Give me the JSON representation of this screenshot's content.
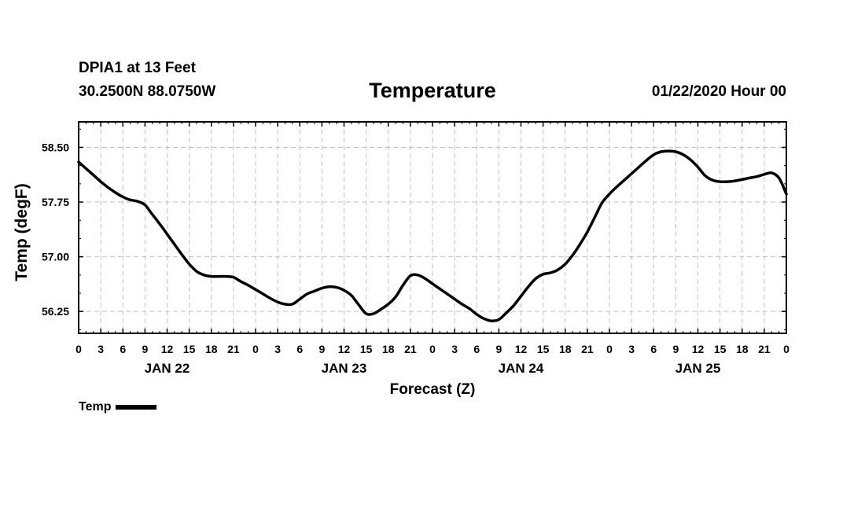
{
  "header": {
    "station": "DPIA1 at 13 Feet",
    "coords": "30.2500N 88.0750W",
    "title": "Temperature",
    "run_time": "01/22/2020 Hour 00"
  },
  "legend": {
    "label": "Temp",
    "color": "#000000"
  },
  "chart_data": {
    "type": "line",
    "title": "Temperature",
    "xlabel": "Forecast (Z)",
    "ylabel": "Temp (degF)",
    "x_unit": "forecast hour from 01/22/2020 00Z",
    "xlim": [
      0,
      96
    ],
    "ylim": [
      55.95,
      58.85
    ],
    "yticks": [
      56.25,
      57.0,
      57.75,
      58.5
    ],
    "ytick_labels": [
      "56.25",
      "57.00",
      "57.75",
      "58.50"
    ],
    "xtick_hours": [
      0,
      3,
      6,
      9,
      12,
      15,
      18,
      21,
      24,
      27,
      30,
      33,
      36,
      39,
      42,
      45,
      48,
      51,
      54,
      57,
      60,
      63,
      66,
      69,
      72,
      75,
      78,
      81,
      84,
      87,
      90,
      93,
      96
    ],
    "xtick_labels": [
      "0",
      "3",
      "6",
      "9",
      "12",
      "15",
      "18",
      "21",
      "0",
      "3",
      "6",
      "9",
      "12",
      "15",
      "18",
      "21",
      "0",
      "3",
      "6",
      "9",
      "12",
      "15",
      "18",
      "21",
      "0",
      "3",
      "6",
      "9",
      "12",
      "15",
      "18",
      "21",
      "0"
    ],
    "day_labels": [
      {
        "label": "JAN 22",
        "hour": 12
      },
      {
        "label": "JAN 23",
        "hour": 36
      },
      {
        "label": "JAN 24",
        "hour": 60
      },
      {
        "label": "JAN 25",
        "hour": 84
      }
    ],
    "grid": true,
    "series": [
      {
        "name": "Temp",
        "color": "#000000",
        "x": [
          0,
          1,
          2,
          3,
          4,
          5,
          6,
          7,
          8,
          9,
          10,
          11,
          12,
          13,
          14,
          15,
          16,
          17,
          18,
          19,
          20,
          21,
          22,
          23,
          24,
          25,
          26,
          27,
          28,
          29,
          30,
          31,
          32,
          33,
          34,
          35,
          36,
          37,
          38,
          39,
          40,
          41,
          42,
          43,
          44,
          45,
          46,
          47,
          48,
          49,
          50,
          51,
          52,
          53,
          54,
          55,
          56,
          57,
          58,
          59,
          60,
          61,
          62,
          63,
          64,
          65,
          66,
          67,
          68,
          69,
          70,
          71,
          72,
          73,
          74,
          75,
          76,
          77,
          78,
          79,
          80,
          81,
          82,
          83,
          84,
          85,
          86,
          87,
          88,
          89,
          90,
          91,
          92,
          93,
          94,
          95,
          96
        ],
        "y": [
          58.3,
          58.21,
          58.12,
          58.03,
          57.95,
          57.88,
          57.82,
          57.78,
          57.76,
          57.71,
          57.58,
          57.45,
          57.31,
          57.17,
          57.03,
          56.9,
          56.8,
          56.75,
          56.73,
          56.73,
          56.73,
          56.72,
          56.66,
          56.61,
          56.55,
          56.49,
          56.43,
          56.38,
          56.35,
          56.35,
          56.42,
          56.49,
          56.53,
          56.57,
          56.59,
          56.58,
          56.54,
          56.47,
          56.34,
          56.22,
          56.22,
          56.28,
          56.35,
          56.45,
          56.61,
          56.74,
          56.75,
          56.7,
          56.63,
          56.56,
          56.49,
          56.42,
          56.35,
          56.29,
          56.21,
          56.15,
          56.12,
          56.14,
          56.23,
          56.33,
          56.46,
          56.59,
          56.7,
          56.76,
          56.78,
          56.82,
          56.9,
          57.02,
          57.17,
          57.34,
          57.54,
          57.74,
          57.86,
          57.96,
          58.05,
          58.14,
          58.23,
          58.32,
          58.4,
          58.44,
          58.45,
          58.44,
          58.4,
          58.33,
          58.23,
          58.11,
          58.05,
          58.03,
          58.03,
          58.04,
          58.06,
          58.08,
          58.1,
          58.13,
          58.15,
          58.08,
          57.86
        ]
      }
    ]
  }
}
